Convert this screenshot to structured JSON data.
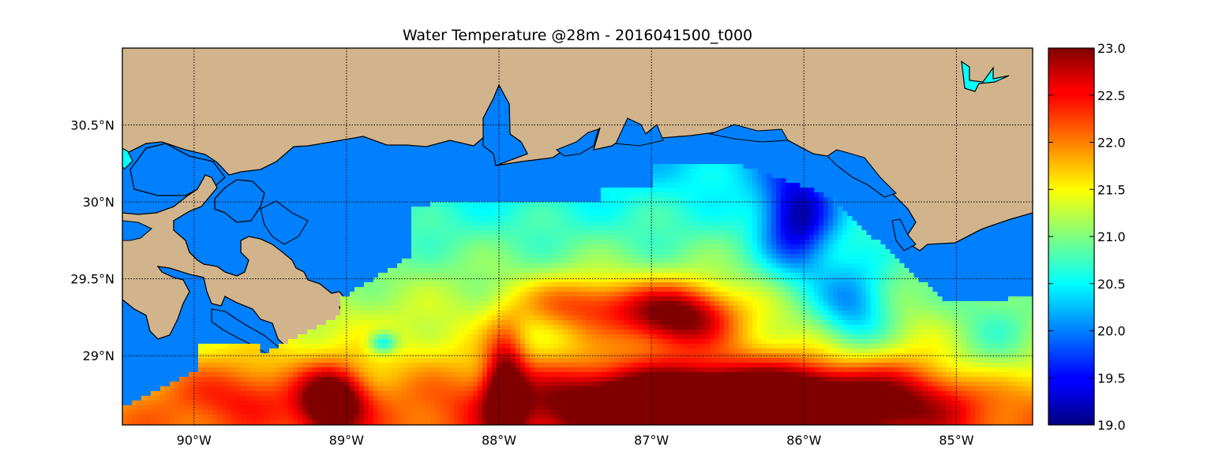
{
  "title": "Water Temperature @28m - 2016041500_t000",
  "map": {
    "extent": {
      "lon_min": -90.47,
      "lon_max": -84.5,
      "lat_min": 28.55,
      "lat_max": 31.0
    },
    "meridians": [
      -90,
      -89,
      -88,
      -87,
      -86,
      -85
    ],
    "meridian_labels": [
      "90°W",
      "89°W",
      "88°W",
      "87°W",
      "86°W",
      "85°W"
    ],
    "parallels": [
      30.5,
      30.0,
      29.5,
      29.0
    ],
    "parallel_labels": [
      "30.5°N",
      "30°N",
      "29.5°N",
      "29°N"
    ],
    "land_color": "#d2b48c",
    "lake_color": "#00ffff",
    "masked_water_color": "#0080ff",
    "grid_style": "dotted",
    "coastline_color": "#000000"
  },
  "colorbar": {
    "colormap": "jet",
    "vmin": 19.0,
    "vmax": 23.0,
    "ticks": [
      "23.0",
      "22.5",
      "22.0",
      "21.5",
      "21.0",
      "20.5",
      "20.0",
      "19.5",
      "19.0"
    ]
  }
}
